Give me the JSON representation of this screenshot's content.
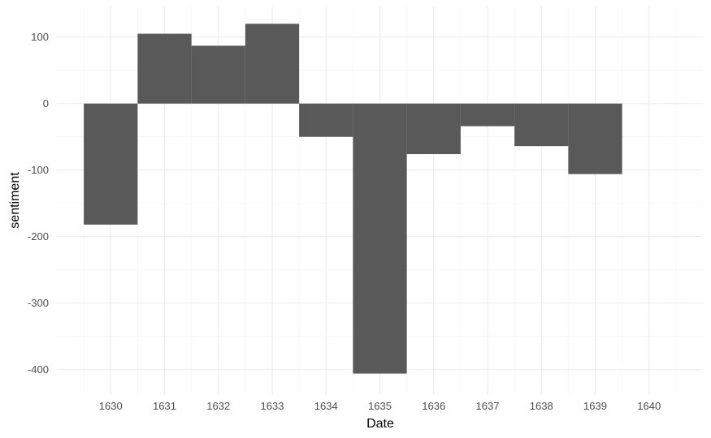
{
  "chart_data": {
    "type": "bar",
    "title": "",
    "xlabel": "Date",
    "ylabel": "sentiment",
    "categories": [
      "1630",
      "1631",
      "1632",
      "1633",
      "1634",
      "1635",
      "1636",
      "1637",
      "1638",
      "1639",
      "1640"
    ],
    "values": [
      -182,
      105,
      87,
      120,
      -50,
      -406,
      -76,
      -34,
      -64,
      -106,
      null
    ],
    "y_ticks": [
      100,
      0,
      -100,
      -200,
      -300,
      -400
    ],
    "y_tick_labels": [
      "100",
      "0",
      "-100",
      "-200",
      "-300",
      "-400"
    ],
    "x_range": [
      1629,
      1641
    ],
    "ylim": [
      -437,
      146
    ],
    "grid": true,
    "legend": "none",
    "colors": {
      "bar": "#595959",
      "grid_major": "#ebebeb",
      "grid_minor": "#f2f2f2"
    }
  }
}
